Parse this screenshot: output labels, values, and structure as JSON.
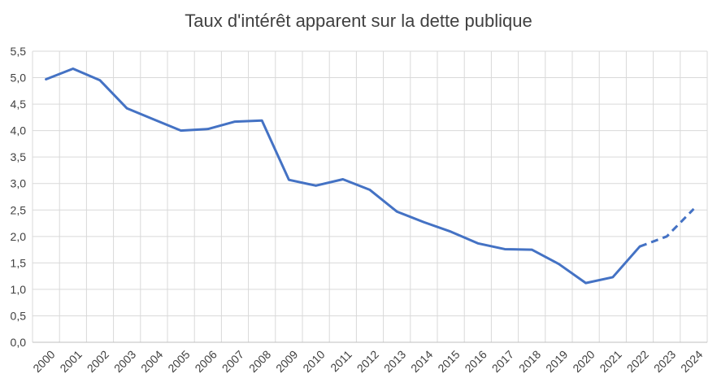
{
  "chart_data": {
    "type": "line",
    "title": "Taux d'intérêt apparent sur la dette publique",
    "xlabel": "",
    "ylabel": "",
    "categories": [
      "2000",
      "2001",
      "2002",
      "2003",
      "2004",
      "2005",
      "2006",
      "2007",
      "2008",
      "2009",
      "2010",
      "2011",
      "2012",
      "2013",
      "2014",
      "2015",
      "2016",
      "2017",
      "2018",
      "2019",
      "2020",
      "2021",
      "2022",
      "2023",
      "2024"
    ],
    "y_tick_labels": [
      "0,0",
      "0,5",
      "1,0",
      "1,5",
      "2,0",
      "2,5",
      "3,0",
      "3,5",
      "4,0",
      "4,5",
      "5,0",
      "5,5"
    ],
    "ylim": [
      0,
      5.5
    ],
    "grid": true,
    "legend": "none",
    "series": [
      {
        "values": [
          4.97,
          5.17,
          4.95,
          4.42,
          4.21,
          4.0,
          4.03,
          4.17,
          4.19,
          3.07,
          2.96,
          3.08,
          2.88,
          2.47,
          2.27,
          2.09,
          1.87,
          1.76,
          1.75,
          1.48,
          1.12,
          1.23,
          1.81,
          2.0,
          2.52
        ],
        "color": "#4472c4",
        "dashed_from_index": 22
      }
    ]
  }
}
